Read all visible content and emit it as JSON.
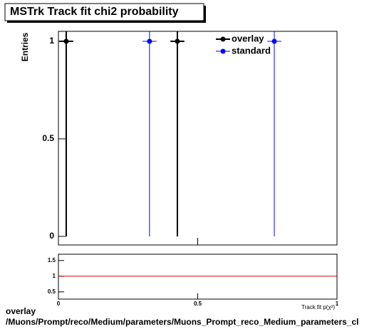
{
  "chart_data": [
    {
      "type": "scatter",
      "title": "MSTrk Track fit chi2 probability",
      "ylabel": "Entries",
      "xlim": [
        0,
        1
      ],
      "ylim": [
        -0.044,
        1.051
      ],
      "yticks": [
        0,
        0.5,
        1
      ],
      "legend": "top-right",
      "series": [
        {
          "name": "overlay",
          "color": "#000000",
          "x": [
            0.028,
            0.427
          ],
          "values": [
            1,
            1
          ],
          "xerr": [
            0.025,
            0.025
          ],
          "yerr": [
            1,
            1
          ]
        },
        {
          "name": "standard",
          "color": "#0000ff",
          "x": [
            0.327,
            0.775
          ],
          "values": [
            1,
            1
          ],
          "xerr": [
            0.025,
            0.025
          ],
          "yerr": [
            1,
            1
          ]
        }
      ]
    },
    {
      "type": "line",
      "xlabel": "Track fit p(χ²)",
      "xlim": [
        0,
        1
      ],
      "ylim": [
        0.27,
        1.7
      ],
      "xticks": [
        0,
        0.5,
        1
      ],
      "yticks": [
        0.5,
        1,
        1.5
      ],
      "x": [
        0,
        1
      ],
      "values": [
        1,
        1
      ],
      "color": "#cc0000"
    }
  ],
  "footer": [
    "overlay",
    "/Muons/Prompt/reco/Medium/parameters/Muons_Prompt_reco_Medium_parameters_cl"
  ]
}
